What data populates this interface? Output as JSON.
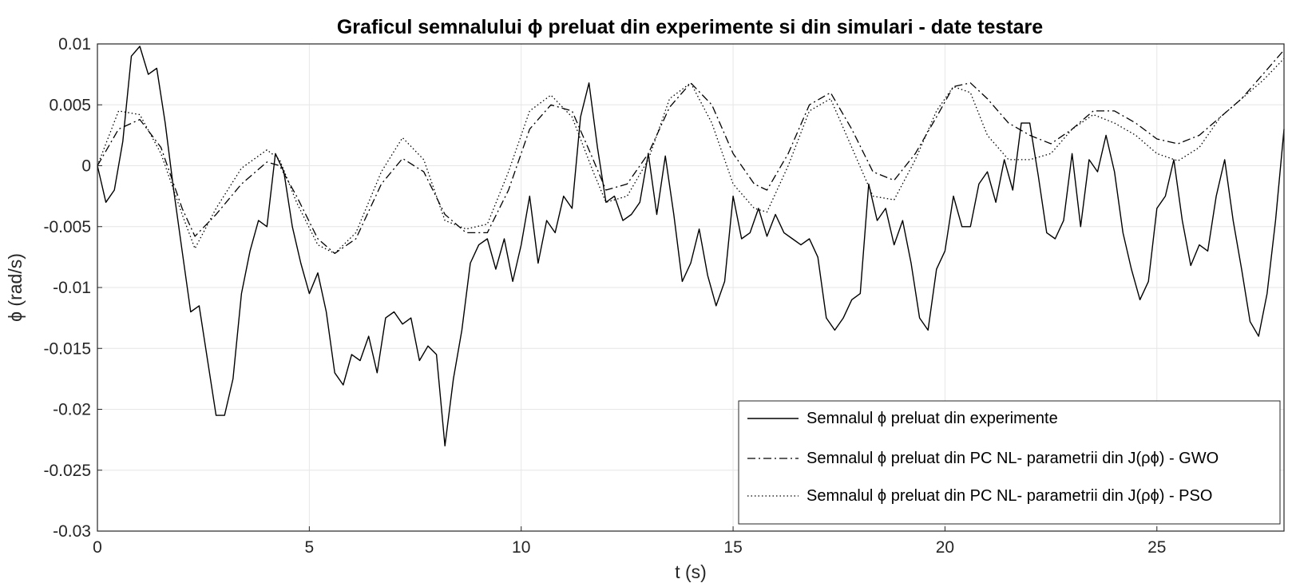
{
  "chart_data": {
    "type": "line",
    "title": "Graficul semnalului ϕ preluat din experimente si din simulari - date testare",
    "xlabel": "t (s)",
    "ylabel": "ϕ (rad/s)",
    "xlim": [
      0,
      28
    ],
    "ylim": [
      -0.03,
      0.01
    ],
    "x_ticks": [
      "0",
      "5",
      "10",
      "15",
      "20",
      "25"
    ],
    "y_ticks": [
      "0.01",
      "0.005",
      "0",
      "-0.005",
      "-0.01",
      "-0.015",
      "-0.02",
      "-0.025",
      "-0.03"
    ],
    "grid": true,
    "legend_position": "bottom-right",
    "series": [
      {
        "name": "Semnalul ϕ preluat din experimente",
        "style": "solid",
        "x": [
          0,
          0.2,
          0.4,
          0.6,
          0.8,
          1.0,
          1.2,
          1.4,
          1.6,
          1.8,
          2.0,
          2.2,
          2.4,
          2.6,
          2.8,
          3.0,
          3.2,
          3.4,
          3.6,
          3.8,
          4.0,
          4.2,
          4.4,
          4.6,
          4.8,
          5.0,
          5.2,
          5.4,
          5.6,
          5.8,
          6.0,
          6.2,
          6.4,
          6.6,
          6.8,
          7.0,
          7.2,
          7.4,
          7.6,
          7.8,
          8.0,
          8.2,
          8.4,
          8.6,
          8.8,
          9.0,
          9.2,
          9.4,
          9.6,
          9.8,
          10.0,
          10.2,
          10.4,
          10.6,
          10.8,
          11.0,
          11.2,
          11.4,
          11.6,
          11.8,
          12.0,
          12.2,
          12.4,
          12.6,
          12.8,
          13.0,
          13.2,
          13.4,
          13.6,
          13.8,
          14.0,
          14.2,
          14.4,
          14.6,
          14.8,
          15.0,
          15.2,
          15.4,
          15.6,
          15.8,
          16.0,
          16.2,
          16.4,
          16.6,
          16.8,
          17.0,
          17.2,
          17.4,
          17.6,
          17.8,
          18.0,
          18.2,
          18.4,
          18.6,
          18.8,
          19.0,
          19.2,
          19.4,
          19.6,
          19.8,
          20.0,
          20.2,
          20.4,
          20.6,
          20.8,
          21.0,
          21.2,
          21.4,
          21.6,
          21.8,
          22.0,
          22.2,
          22.4,
          22.6,
          22.8,
          23.0,
          23.2,
          23.4,
          23.6,
          23.8,
          24.0,
          24.2,
          24.4,
          24.6,
          24.8,
          25.0,
          25.2,
          25.4,
          25.6,
          25.8,
          26.0,
          26.2,
          26.4,
          26.6,
          26.8,
          27.0,
          27.2,
          27.4,
          27.6,
          27.8,
          28.0
        ],
        "y": [
          0,
          -0.003,
          -0.002,
          0.002,
          0.009,
          0.0098,
          0.0075,
          0.008,
          0.0035,
          -0.002,
          -0.007,
          -0.012,
          -0.0115,
          -0.016,
          -0.0205,
          -0.0205,
          -0.0175,
          -0.0105,
          -0.007,
          -0.0045,
          -0.005,
          0.001,
          -0.0005,
          -0.005,
          -0.008,
          -0.0105,
          -0.0088,
          -0.012,
          -0.017,
          -0.018,
          -0.0155,
          -0.016,
          -0.014,
          -0.017,
          -0.0125,
          -0.012,
          -0.013,
          -0.0125,
          -0.016,
          -0.0148,
          -0.0155,
          -0.023,
          -0.0175,
          -0.0135,
          -0.008,
          -0.0065,
          -0.006,
          -0.0085,
          -0.006,
          -0.0095,
          -0.0065,
          -0.0025,
          -0.008,
          -0.0045,
          -0.0055,
          -0.0025,
          -0.0035,
          0.004,
          0.0068,
          0.0015,
          -0.003,
          -0.0025,
          -0.0045,
          -0.004,
          -0.003,
          0.001,
          -0.004,
          0.0008,
          -0.004,
          -0.0095,
          -0.008,
          -0.0052,
          -0.009,
          -0.0115,
          -0.0095,
          -0.0025,
          -0.006,
          -0.0055,
          -0.0035,
          -0.0058,
          -0.004,
          -0.0055,
          -0.006,
          -0.0065,
          -0.006,
          -0.0075,
          -0.0125,
          -0.0135,
          -0.0125,
          -0.011,
          -0.0105,
          -0.0015,
          -0.0045,
          -0.0035,
          -0.0065,
          -0.0045,
          -0.008,
          -0.0125,
          -0.0135,
          -0.0085,
          -0.007,
          -0.0025,
          -0.005,
          -0.005,
          -0.0015,
          -0.0005,
          -0.003,
          0.0005,
          -0.002,
          0.0035,
          0.0035,
          -0.0008,
          -0.0055,
          -0.006,
          -0.0045,
          0.001,
          -0.005,
          0.0005,
          -0.0005,
          0.0025,
          -0.0005,
          -0.0055,
          -0.0085,
          -0.011,
          -0.0095,
          -0.0035,
          -0.0025,
          0.0005,
          -0.0045,
          -0.0082,
          -0.0065,
          -0.007,
          -0.0025,
          0.0005,
          -0.0045,
          -0.0085,
          -0.0128,
          -0.014,
          -0.0105,
          -0.0045,
          0.003
        ]
      },
      {
        "name": "Semnalul ϕ preluat din PC NL- parametrii din J(ρϕ) - GWO",
        "style": "dashdot",
        "x": [
          0,
          0.5,
          1.0,
          1.5,
          2.0,
          2.3,
          2.8,
          3.4,
          4.0,
          4.3,
          4.7,
          5.2,
          5.6,
          6.1,
          6.7,
          7.2,
          7.7,
          8.2,
          8.7,
          9.2,
          9.7,
          10.2,
          10.7,
          11.2,
          11.7,
          12.0,
          12.5,
          13.0,
          13.5,
          14.0,
          14.5,
          15.0,
          15.5,
          15.8,
          16.3,
          16.8,
          17.3,
          17.8,
          18.3,
          18.8,
          19.3,
          19.8,
          20.2,
          20.6,
          21.0,
          21.5,
          22.0,
          22.5,
          23.0,
          23.5,
          24.0,
          24.5,
          25.0,
          25.5,
          26.0,
          26.5,
          27.0,
          27.5,
          28.0
        ],
        "y": [
          0,
          0.003,
          0.0038,
          0.0015,
          -0.0035,
          -0.0058,
          -0.004,
          -0.0015,
          0.0003,
          0,
          -0.0025,
          -0.006,
          -0.0072,
          -0.006,
          -0.0015,
          0.0006,
          -0.0005,
          -0.004,
          -0.0055,
          -0.0055,
          -0.002,
          0.003,
          0.005,
          0.0045,
          0.0005,
          -0.002,
          -0.0015,
          0.001,
          0.0048,
          0.0068,
          0.005,
          0.001,
          -0.0015,
          -0.002,
          0.001,
          0.005,
          0.006,
          0.003,
          -0.0005,
          -0.0012,
          0.001,
          0.004,
          0.0065,
          0.0068,
          0.0055,
          0.0035,
          0.0025,
          0.0018,
          0.003,
          0.0045,
          0.0045,
          0.0035,
          0.0022,
          0.0018,
          0.0025,
          0.004,
          0.0055,
          0.0075,
          0.0095
        ]
      },
      {
        "name": "Semnalul ϕ preluat din PC NL- parametrii din J(ρϕ) - PSO",
        "style": "dotted",
        "x": [
          0,
          0.5,
          1.0,
          1.5,
          2.0,
          2.3,
          2.8,
          3.4,
          4.0,
          4.3,
          4.7,
          5.2,
          5.6,
          6.1,
          6.7,
          7.2,
          7.7,
          8.2,
          8.7,
          9.2,
          9.7,
          10.2,
          10.7,
          11.2,
          11.7,
          12.0,
          12.5,
          13.0,
          13.5,
          14.0,
          14.5,
          15.0,
          15.5,
          15.8,
          16.3,
          16.8,
          17.3,
          17.8,
          18.3,
          18.8,
          19.3,
          19.8,
          20.2,
          20.6,
          21.0,
          21.5,
          22.0,
          22.5,
          23.0,
          23.5,
          24.0,
          24.5,
          25.0,
          25.5,
          26.0,
          26.5,
          27.0,
          27.5,
          28.0
        ],
        "y": [
          0,
          0.0045,
          0.0042,
          0.001,
          -0.004,
          -0.0068,
          -0.0035,
          -0.0002,
          0.0013,
          0.0005,
          -0.003,
          -0.0065,
          -0.0072,
          -0.0055,
          -0.0005,
          0.0023,
          0.0005,
          -0.0045,
          -0.0052,
          -0.0048,
          -0.0005,
          0.0045,
          0.0058,
          0.004,
          -0.0005,
          -0.003,
          -0.0025,
          0.0005,
          0.0055,
          0.0068,
          0.0035,
          -0.0015,
          -0.0035,
          -0.0038,
          0,
          0.0045,
          0.0055,
          0.0015,
          -0.0025,
          -0.0028,
          0.0005,
          0.0045,
          0.0065,
          0.006,
          0.0025,
          0.0005,
          0.0005,
          0.001,
          0.003,
          0.0042,
          0.0035,
          0.0025,
          0.001,
          0.0004,
          0.0015,
          0.004,
          0.0055,
          0.007,
          0.0088
        ]
      }
    ]
  }
}
